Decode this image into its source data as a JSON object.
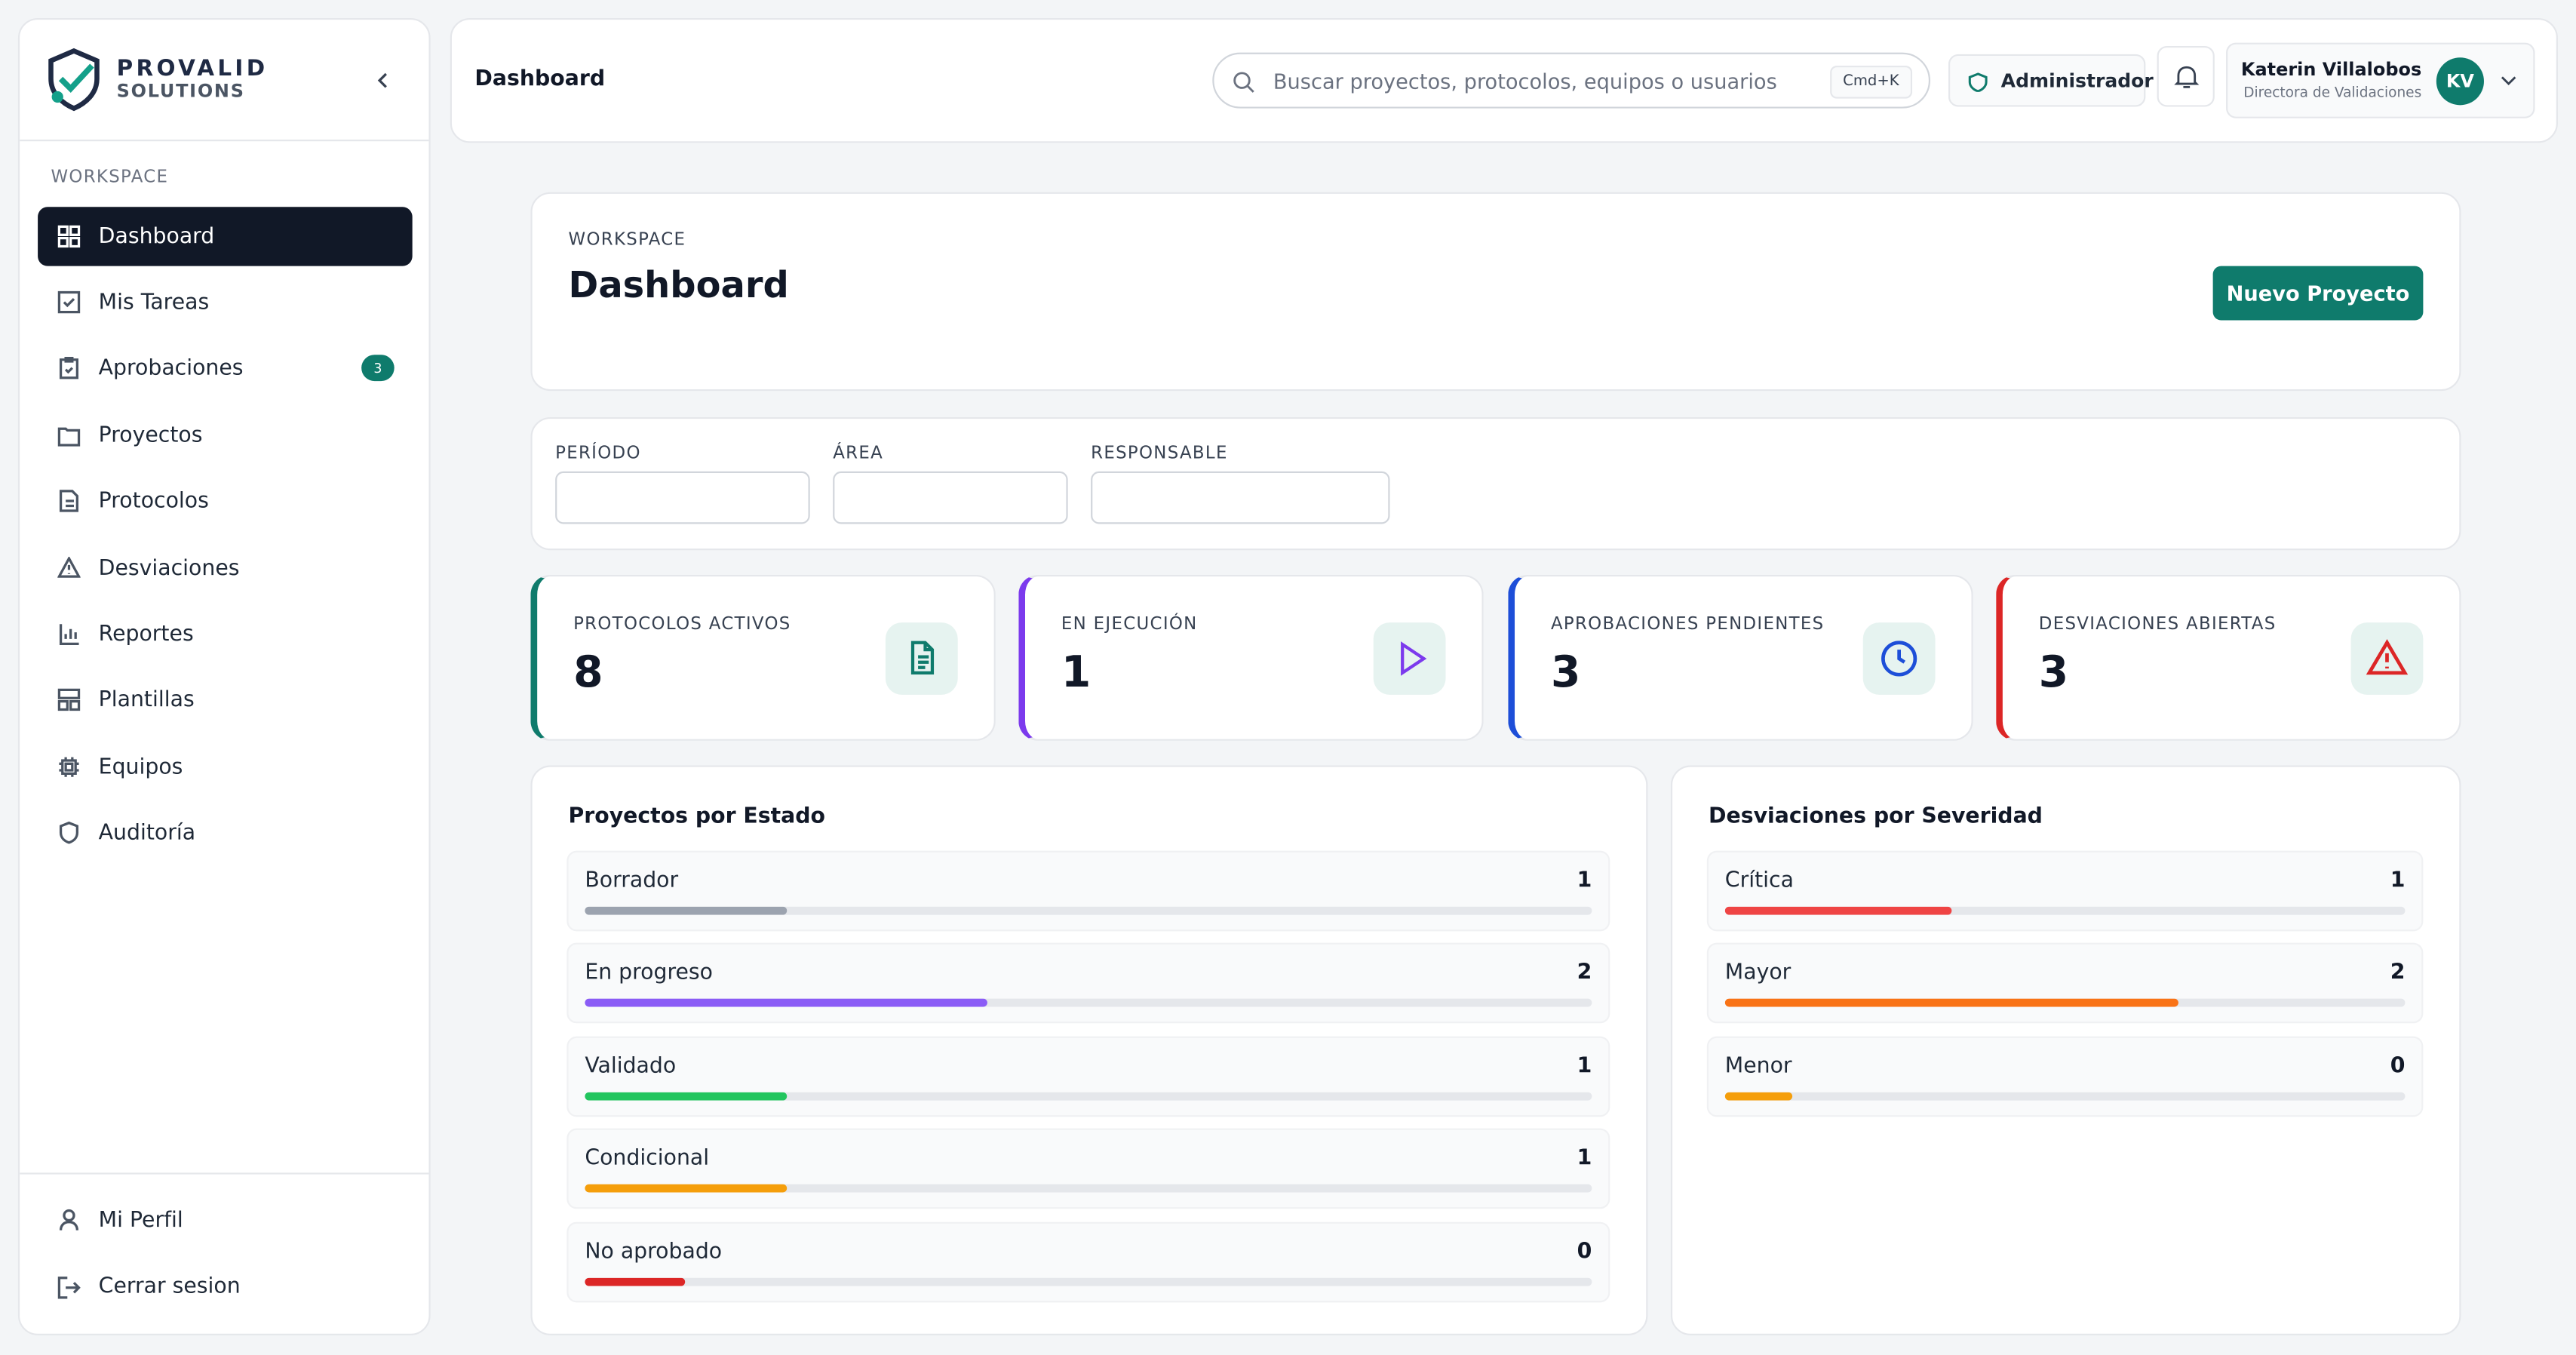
{
  "brand": {
    "name": "PROVALID",
    "sub": "SOLUTIONS"
  },
  "sidebar": {
    "section": "WORKSPACE",
    "items": [
      {
        "label": "Dashboard"
      },
      {
        "label": "Mis Tareas"
      },
      {
        "label": "Aprobaciones",
        "badge": "3"
      },
      {
        "label": "Proyectos"
      },
      {
        "label": "Protocolos"
      },
      {
        "label": "Desviaciones"
      },
      {
        "label": "Reportes"
      },
      {
        "label": "Plantillas"
      },
      {
        "label": "Equipos"
      },
      {
        "label": "Auditoría"
      }
    ],
    "footer": [
      "Mi Perfil",
      "Cerrar sesion"
    ]
  },
  "topbar": {
    "title": "Dashboard",
    "search": "Buscar proyectos, protocolos, equipos o usuarios",
    "shortcut": "Cmd+K",
    "role": "Administrador",
    "user": {
      "name": "Katerin Villalobos",
      "title": "Directora de Validaciones",
      "initials": "KV"
    }
  },
  "header": {
    "eyebrow": "WORKSPACE",
    "title": "Dashboard",
    "button": "Nuevo Proyecto"
  },
  "filters": [
    "PERÍODO",
    "ÁREA",
    "RESPONSABLE"
  ],
  "stats": [
    {
      "label": "PROTOCOLOS ACTIVOS",
      "value": "8",
      "color": "#0f7b6c",
      "bg": "#e6f3f0"
    },
    {
      "label": "EN EJECUCIÓN",
      "value": "1",
      "color": "#7c3aed",
      "bg": "#e6f3f0"
    },
    {
      "label": "APROBACIONES PENDIENTES",
      "value": "3",
      "color": "#1d4ed8",
      "bg": "#e6f3f0"
    },
    {
      "label": "DESVIACIONES ABIERTAS",
      "value": "3",
      "color": "#dc2626",
      "bg": "#e6f3f0"
    }
  ],
  "panels": [
    {
      "title": "Proyectos por Estado",
      "rows": [
        {
          "label": "Borrador",
          "value": 1,
          "color": "#9ca3af"
        },
        {
          "label": "En progreso",
          "value": 2,
          "color": "#8b5cf6"
        },
        {
          "label": "Validado",
          "value": 1,
          "color": "#22c55e"
        },
        {
          "label": "Condicional",
          "value": 1,
          "color": "#f59e0b"
        },
        {
          "label": "No aprobado",
          "value": 0,
          "color": "#dc2626"
        }
      ]
    },
    {
      "title": "Desviaciones por Severidad",
      "rows": [
        {
          "label": "Crítica",
          "value": 1,
          "color": "#ef4444"
        },
        {
          "label": "Mayor",
          "value": 2,
          "color": "#f97316"
        },
        {
          "label": "Menor",
          "value": 0,
          "color": "#f59e0b"
        }
      ]
    }
  ]
}
